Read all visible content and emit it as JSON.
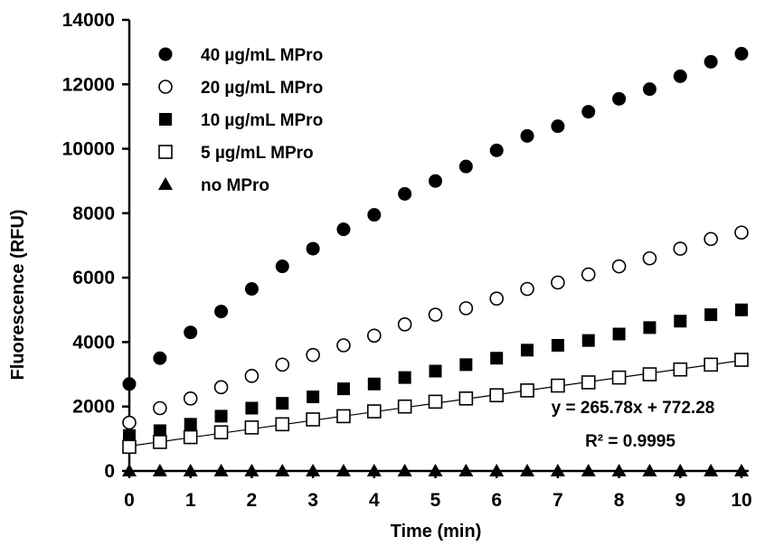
{
  "chart_data": {
    "type": "scatter",
    "xlabel": "Time (min)",
    "ylabel": "Fluorescence (RFU)",
    "xlim": [
      0,
      10
    ],
    "ylim": [
      0,
      14000
    ],
    "x_ticks": [
      0,
      1,
      2,
      3,
      4,
      5,
      6,
      7,
      8,
      9,
      10
    ],
    "y_ticks": [
      0,
      2000,
      4000,
      6000,
      8000,
      10000,
      12000,
      14000
    ],
    "x_tick_labels": [
      "0",
      "1",
      "2",
      "3",
      "4",
      "5",
      "6",
      "7",
      "8",
      "9",
      "10"
    ],
    "y_tick_labels": [
      "0",
      "2000",
      "4000",
      "6000",
      "8000",
      "10000",
      "12000",
      "14000"
    ],
    "grid": false,
    "legend_position": "top-left",
    "x": [
      0,
      0.5,
      1,
      1.5,
      2,
      2.5,
      3,
      3.5,
      4,
      4.5,
      5,
      5.5,
      6,
      6.5,
      7,
      7.5,
      8,
      8.5,
      9,
      9.5,
      10
    ],
    "series": [
      {
        "name": "40 µg/mL MPro",
        "marker": "circle-filled",
        "values": [
          2700,
          3500,
          4300,
          4950,
          5650,
          6350,
          6900,
          7500,
          7950,
          8600,
          9000,
          9450,
          9950,
          10400,
          10700,
          11150,
          11550,
          11850,
          12250,
          12700,
          12950
        ]
      },
      {
        "name": "20 µg/mL MPro",
        "marker": "circle-open",
        "values": [
          1500,
          1950,
          2250,
          2600,
          2950,
          3300,
          3600,
          3900,
          4200,
          4550,
          4850,
          5050,
          5350,
          5650,
          5850,
          6100,
          6350,
          6600,
          6900,
          7200,
          7400
        ]
      },
      {
        "name": "10 µg/mL MPro",
        "marker": "square-filled",
        "values": [
          1100,
          1250,
          1450,
          1700,
          1950,
          2100,
          2300,
          2550,
          2700,
          2900,
          3100,
          3300,
          3500,
          3750,
          3900,
          4050,
          4250,
          4450,
          4650,
          4850,
          5000
        ]
      },
      {
        "name": "5 µg/mL MPro",
        "marker": "square-open",
        "values": [
          750,
          900,
          1050,
          1200,
          1350,
          1450,
          1600,
          1700,
          1850,
          2000,
          2150,
          2250,
          2350,
          2500,
          2650,
          2750,
          2900,
          3000,
          3150,
          3300,
          3450
        ]
      },
      {
        "name": "no MPro",
        "marker": "triangle-filled",
        "values": [
          0,
          0,
          0,
          0,
          0,
          0,
          0,
          0,
          0,
          0,
          0,
          0,
          0,
          0,
          0,
          0,
          0,
          0,
          0,
          0,
          0
        ]
      }
    ],
    "trendline": {
      "series": "5 µg/mL MPro",
      "slope": 265.78,
      "intercept": 772.28,
      "equation": "y = 265.78x + 772.28",
      "r_squared": "R² = 0.9995"
    }
  }
}
